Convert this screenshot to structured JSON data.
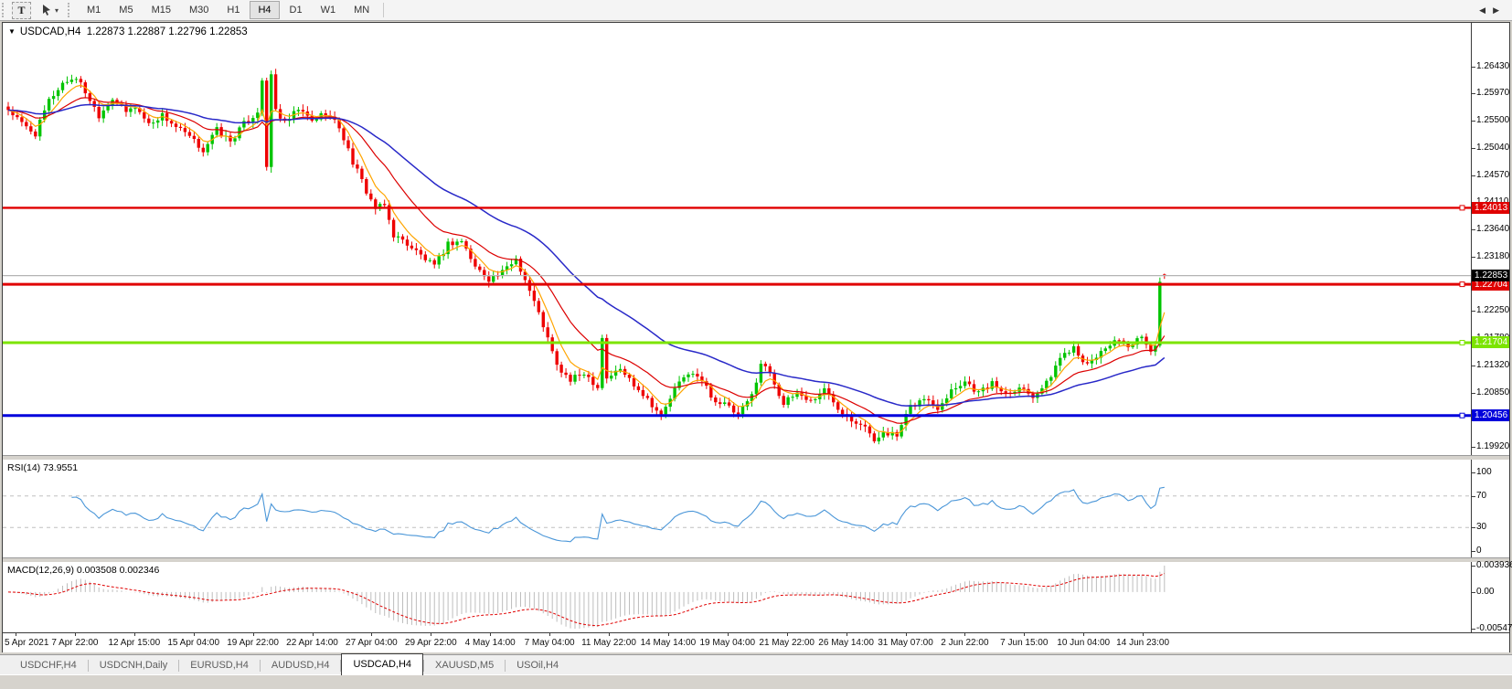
{
  "icons": {
    "text_tool": "T",
    "cursor_tool": "➤",
    "cursor_dropdown": "▾",
    "collapse": "▼",
    "tab_scroll_left": "◀",
    "tab_scroll_right": "▶"
  },
  "toolbar": {
    "text_tool_label": "T",
    "timeframes": [
      "M1",
      "M5",
      "M15",
      "M30",
      "H1",
      "H4",
      "D1",
      "W1",
      "MN"
    ],
    "active_timeframe": "H4"
  },
  "chart": {
    "title_symbol": "USDCAD,H4",
    "title_ohlc": "1.22873 1.22887 1.22796 1.22853",
    "price_ticks": [
      "1.26430",
      "1.25970",
      "1.25500",
      "1.25040",
      "1.24570",
      "1.24110",
      "1.23640",
      "1.23180",
      "1.22710",
      "1.22250",
      "1.21780",
      "1.21320",
      "1.20850",
      "1.20390",
      "1.19920"
    ],
    "hlines": [
      {
        "price": 1.24013,
        "label": "1.24013",
        "color": "#e00000",
        "thickness": 2.4
      },
      {
        "price": 1.22704,
        "label": "1.22704",
        "color": "#e00000",
        "thickness": 3
      },
      {
        "price": 1.21704,
        "label": "1.21704",
        "color": "#7ce400",
        "thickness": 3
      },
      {
        "price": 1.20456,
        "label": "1.20456",
        "color": "#0000dc",
        "thickness": 3
      }
    ],
    "current_price": {
      "label": "1.22853",
      "price": 1.22853,
      "line_color": "#b4b4b4",
      "box_color": "#000000"
    },
    "last_bar": {
      "open": 1.22873,
      "high": 1.22887,
      "low": 1.22796,
      "close": 1.22853
    },
    "bar_count": 256,
    "colors": {
      "up": "#00c400",
      "down": "#ee0000",
      "ma_fast": "#ffa500",
      "ma_mid": "#dc0000",
      "ma_slow": "#2828c8"
    },
    "price_path_anchors": [
      [
        0,
        1.257
      ],
      [
        3,
        1.2545
      ],
      [
        6,
        1.2528
      ],
      [
        9,
        1.2585
      ],
      [
        12,
        1.2615
      ],
      [
        15,
        1.2625
      ],
      [
        17,
        1.26
      ],
      [
        20,
        1.256
      ],
      [
        23,
        1.259
      ],
      [
        26,
        1.2565
      ],
      [
        28,
        1.2575
      ],
      [
        31,
        1.2545
      ],
      [
        34,
        1.256
      ],
      [
        37,
        1.254
      ],
      [
        40,
        1.2522
      ],
      [
        43,
        1.25
      ],
      [
        46,
        1.2535
      ],
      [
        49,
        1.2515
      ],
      [
        52,
        1.2545
      ],
      [
        55,
        1.2565
      ],
      [
        56,
        1.262
      ],
      [
        57,
        1.247
      ],
      [
        58,
        1.263
      ],
      [
        59,
        1.257
      ],
      [
        61,
        1.2545
      ],
      [
        64,
        1.257
      ],
      [
        67,
        1.255
      ],
      [
        70,
        1.2565
      ],
      [
        73,
        1.254
      ],
      [
        76,
        1.248
      ],
      [
        79,
        1.243
      ],
      [
        81,
        1.24
      ],
      [
        83,
        1.2405
      ],
      [
        85,
        1.2355
      ],
      [
        88,
        1.234
      ],
      [
        91,
        1.232
      ],
      [
        94,
        1.23
      ],
      [
        97,
        1.234
      ],
      [
        100,
        1.2345
      ],
      [
        103,
        1.23
      ],
      [
        106,
        1.228
      ],
      [
        109,
        1.229
      ],
      [
        112,
        1.2315
      ],
      [
        115,
        1.226
      ],
      [
        118,
        1.22
      ],
      [
        121,
        1.213
      ],
      [
        124,
        1.2105
      ],
      [
        127,
        1.212
      ],
      [
        130,
        1.2095
      ],
      [
        131,
        1.218
      ],
      [
        132,
        1.211
      ],
      [
        135,
        1.2125
      ],
      [
        138,
        1.21
      ],
      [
        141,
        1.2075
      ],
      [
        144,
        1.2045
      ],
      [
        147,
        1.209
      ],
      [
        150,
        1.212
      ],
      [
        153,
        1.2105
      ],
      [
        156,
        1.207
      ],
      [
        158,
        1.2065
      ],
      [
        161,
        1.2045
      ],
      [
        164,
        1.208
      ],
      [
        166,
        1.2135
      ],
      [
        168,
        1.212
      ],
      [
        171,
        1.2065
      ],
      [
        174,
        1.2085
      ],
      [
        177,
        1.207
      ],
      [
        180,
        1.209
      ],
      [
        183,
        1.206
      ],
      [
        186,
        1.204
      ],
      [
        189,
        1.203
      ],
      [
        191,
        1.1998
      ],
      [
        193,
        1.202
      ],
      [
        196,
        1.201
      ],
      [
        199,
        1.206
      ],
      [
        202,
        1.2075
      ],
      [
        205,
        1.206
      ],
      [
        208,
        1.209
      ],
      [
        211,
        1.2105
      ],
      [
        214,
        1.2085
      ],
      [
        217,
        1.21
      ],
      [
        220,
        1.2085
      ],
      [
        223,
        1.2095
      ],
      [
        226,
        1.208
      ],
      [
        229,
        1.21
      ],
      [
        232,
        1.2145
      ],
      [
        235,
        1.2165
      ],
      [
        238,
        1.213
      ],
      [
        241,
        1.2155
      ],
      [
        244,
        1.2175
      ],
      [
        247,
        1.216
      ],
      [
        250,
        1.218
      ],
      [
        252,
        1.2155
      ],
      [
        253,
        1.2165
      ],
      [
        254,
        1.2275
      ],
      [
        255,
        1.22853
      ]
    ]
  },
  "rsi": {
    "label": "RSI(14) 73.9551",
    "period": 14,
    "ticks": [
      {
        "value": 100,
        "label": "100"
      },
      {
        "value": 70,
        "label": "70"
      },
      {
        "value": 30,
        "label": "30"
      },
      {
        "value": 0,
        "label": "0"
      }
    ],
    "levels": [
      70,
      30
    ],
    "line_color": "#4a96d8",
    "level_color": "#c0c0c0"
  },
  "macd": {
    "label": "MACD(12,26,9) 0.003508 0.002346",
    "fast": 12,
    "slow": 26,
    "signal": 9,
    "axis_max": 0.003936,
    "axis_min": -0.00547,
    "ticks": [
      {
        "value": 0.003936,
        "label": "0.003936"
      },
      {
        "value": 0,
        "label": "0.00"
      },
      {
        "value": -0.00547,
        "label": "-0.00547"
      }
    ],
    "hist_color": "#bdbdbd",
    "signal_color": "#e00000"
  },
  "time_axis": [
    "5 Apr 2021",
    "7 Apr 22:00",
    "12 Apr 15:00",
    "15 Apr 04:00",
    "19 Apr 22:00",
    "22 Apr 14:00",
    "27 Apr 04:00",
    "29 Apr 22:00",
    "4 May 14:00",
    "7 May 04:00",
    "11 May 22:00",
    "14 May 14:00",
    "19 May 04:00",
    "21 May 22:00",
    "26 May 14:00",
    "31 May 07:00",
    "2 Jun 22:00",
    "7 Jun 15:00",
    "10 Jun 04:00",
    "14 Jun 23:00"
  ],
  "tabs": {
    "items": [
      "USDCHF,H4",
      "USDCNH,Daily",
      "EURUSD,H4",
      "AUDUSD,H4",
      "USDCAD,H4",
      "XAUUSD,M5",
      "USOil,H4"
    ],
    "active": "USDCAD,H4"
  }
}
